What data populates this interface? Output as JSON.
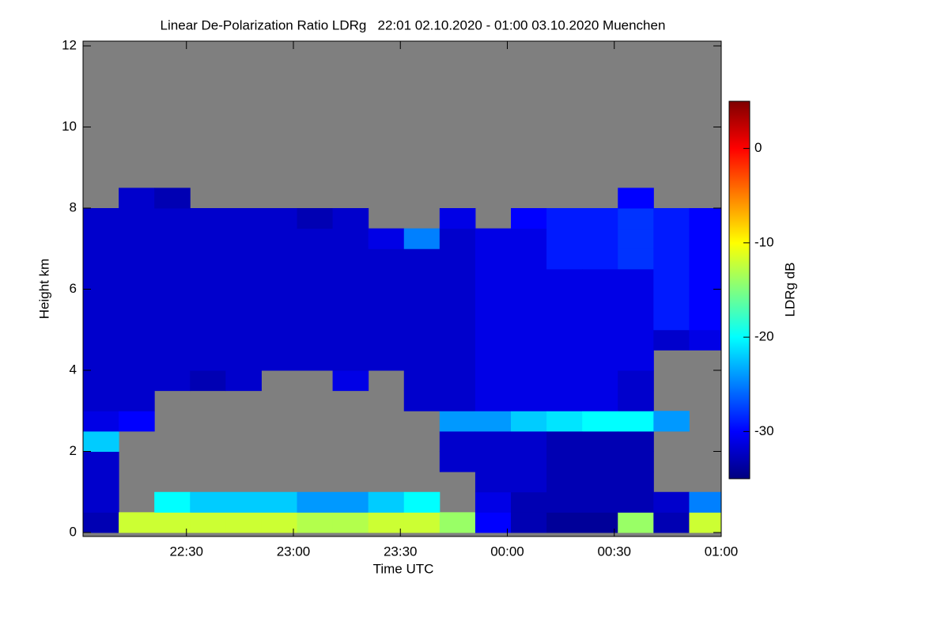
{
  "chart_data": {
    "type": "heatmap",
    "title": "Linear De-Polarization Ratio LDRg   22:01 02.10.2020 - 01:00 03.10.2020 Muenchen",
    "x_label": "Time UTC",
    "y_label": "Height km",
    "xlim": [
      1,
      180
    ],
    "xticks": [
      {
        "value": 30,
        "label": "22:30"
      },
      {
        "value": 60,
        "label": "23:00"
      },
      {
        "value": 90,
        "label": "23:30"
      },
      {
        "value": 120,
        "label": "00:00"
      },
      {
        "value": 150,
        "label": "00:30"
      },
      {
        "value": 180,
        "label": "01:00"
      }
    ],
    "ylim": [
      0,
      12
    ],
    "yticks": [
      0,
      2,
      4,
      6,
      8,
      10,
      12
    ],
    "x": [
      1,
      11,
      21,
      31,
      41,
      51,
      61,
      71,
      81,
      91,
      101,
      111,
      121,
      131,
      141,
      151,
      161,
      171
    ],
    "y": [
      0,
      0.5,
      1,
      1.5,
      2,
      2.5,
      3,
      3.5,
      4,
      4.5,
      5,
      5.5,
      6,
      6.5,
      7,
      7.5,
      8,
      8.5
    ],
    "values": [
      [
        -33,
        -32,
        -32,
        -32,
        -22,
        -31,
        -32,
        -32,
        -32,
        -32,
        -32,
        -32,
        -32,
        -32,
        -32,
        -32,
        null,
        null
      ],
      [
        -12,
        null,
        null,
        null,
        null,
        -30,
        -32,
        -32,
        -32,
        -32,
        -32,
        -32,
        -32,
        -32,
        -32,
        -32,
        -32,
        null
      ],
      [
        -12,
        -20,
        null,
        null,
        null,
        null,
        null,
        -32,
        -32,
        -32,
        -32,
        -32,
        -32,
        -32,
        -32,
        -32,
        -33,
        null
      ],
      [
        -12,
        -22,
        null,
        null,
        null,
        null,
        null,
        -33,
        -32,
        -32,
        -32,
        -32,
        -32,
        -32,
        -32,
        -32,
        null,
        null
      ],
      [
        -12,
        -22,
        null,
        null,
        null,
        null,
        null,
        -32,
        -32,
        -32,
        -32,
        -32,
        -32,
        -32,
        -32,
        -32,
        null,
        null
      ],
      [
        -12,
        -22,
        null,
        null,
        null,
        null,
        null,
        null,
        -32,
        -32,
        -32,
        -32,
        -32,
        -32,
        -32,
        -32,
        null,
        null
      ],
      [
        -13,
        -24,
        null,
        null,
        null,
        null,
        null,
        null,
        -32,
        -32,
        -32,
        -32,
        -32,
        -32,
        -32,
        -33,
        null,
        null
      ],
      [
        -13,
        -24,
        null,
        null,
        null,
        null,
        null,
        -31,
        -32,
        -32,
        -32,
        -32,
        -32,
        -32,
        -32,
        -32,
        null,
        null
      ],
      [
        -12,
        -22,
        null,
        null,
        null,
        null,
        null,
        null,
        -32,
        -32,
        -32,
        -32,
        -32,
        -32,
        -31,
        null,
        null,
        null
      ],
      [
        -12,
        -20,
        null,
        null,
        null,
        null,
        -32,
        -32,
        -32,
        -32,
        -32,
        -32,
        -32,
        -32,
        -25,
        null,
        null,
        null
      ],
      [
        -14,
        null,
        null,
        -32,
        -32,
        -24,
        -32,
        -32,
        -32,
        -32,
        -32,
        -32,
        -32,
        -32,
        -32,
        -31,
        null,
        null
      ],
      [
        -30,
        -31,
        -32,
        -32,
        -32,
        -24,
        -31,
        -31,
        -31,
        -31,
        -31,
        -31,
        -31,
        -31,
        -31,
        null,
        null,
        null
      ],
      [
        -33,
        -33,
        -32,
        -32,
        -32,
        -22,
        -31,
        -31,
        -31,
        -31,
        -31,
        -31,
        -31,
        -31,
        -31,
        -30,
        null,
        null
      ],
      [
        -34,
        -33,
        -33,
        -33,
        -33,
        -21,
        -31,
        -31,
        -31,
        -31,
        -31,
        -31,
        -31,
        -29,
        -29,
        -29,
        null,
        null
      ],
      [
        -34,
        -33,
        -33,
        -33,
        -33,
        -20,
        -31,
        -31,
        -31,
        -31,
        -31,
        -31,
        -31,
        -29,
        -29,
        -29,
        null,
        null
      ],
      [
        -14,
        -33,
        -33,
        -33,
        -33,
        -20,
        -32,
        -32,
        -31,
        -31,
        -31,
        -31,
        -31,
        -28,
        -28,
        -28,
        -30,
        null
      ],
      [
        -33,
        -32,
        null,
        null,
        null,
        -24,
        null,
        null,
        null,
        -32,
        -29,
        -29,
        -29,
        -29,
        -29,
        -29,
        null,
        null
      ],
      [
        -12,
        -25,
        null,
        null,
        null,
        null,
        null,
        null,
        null,
        -31,
        -30,
        -30,
        -30,
        -30,
        -30,
        -30,
        null,
        null
      ]
    ],
    "colorbar": {
      "label": "LDRg dB",
      "lim": [
        -35,
        5
      ],
      "ticks": [
        0,
        -10,
        -20,
        -30
      ],
      "colormap": "jet"
    },
    "background": "#7f7f7f"
  }
}
